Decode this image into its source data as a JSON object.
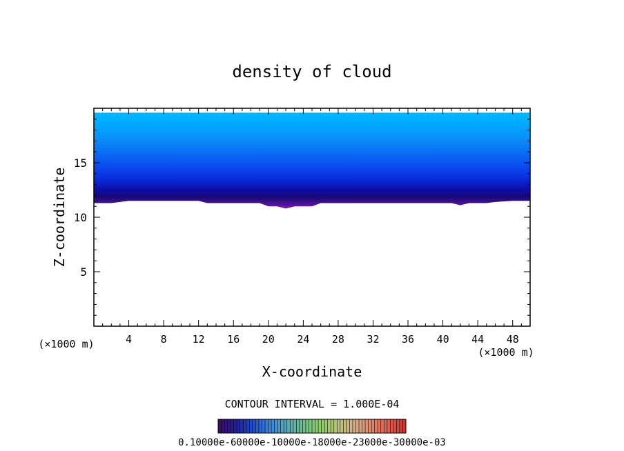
{
  "chart_data": {
    "type": "heatmap",
    "title": "density of cloud",
    "xlabel": "X-coordinate",
    "ylabel": "Z-coordinate",
    "x_unit": "(×1000 m)",
    "y_unit": "(×1000 m)",
    "xlim": [
      0,
      50
    ],
    "ylim": [
      0,
      20
    ],
    "x_ticks": [
      "4",
      "8",
      "12",
      "16",
      "20",
      "24",
      "28",
      "32",
      "36",
      "40",
      "44",
      "48"
    ],
    "y_ticks": [
      "5",
      "10",
      "15"
    ],
    "contour_interval_label": "CONTOUR INTERVAL = 1.000E-04",
    "colorbar_label": "0.10000e-60000e-10000e-18000e-23000e-30000e-03",
    "cloud_top_km": 19.6,
    "cloud_base_profile": {
      "x": [
        0,
        2,
        4,
        6,
        8,
        10,
        12,
        13,
        16,
        17,
        19,
        20,
        21,
        22,
        23,
        24,
        25,
        26,
        28,
        30,
        32,
        34,
        36,
        38,
        40,
        41,
        42,
        43,
        45,
        46,
        48,
        50
      ],
      "z": [
        11.3,
        11.3,
        11.5,
        11.5,
        11.5,
        11.5,
        11.5,
        11.3,
        11.3,
        11.3,
        11.3,
        11.0,
        11.0,
        10.8,
        11.0,
        11.0,
        11.0,
        11.3,
        11.3,
        11.3,
        11.3,
        11.3,
        11.3,
        11.3,
        11.3,
        11.3,
        11.1,
        11.3,
        11.3,
        11.4,
        11.5,
        11.5
      ]
    },
    "color_levels": [
      "#7a16b8",
      "#1b0878",
      "#0c0ea8",
      "#0a2ad8",
      "#0a4cf0",
      "#0a6df4",
      "#0a8cf8",
      "#00aaff",
      "#00b8ff"
    ],
    "colorbar_colors": [
      "#3a0f6a",
      "#22209a",
      "#1e4fd0",
      "#3e86d6",
      "#5aa8b6",
      "#6fbf8a",
      "#8fcf6a",
      "#b8c47a",
      "#d6b08a",
      "#e08a70",
      "#e06050",
      "#c83b34"
    ]
  }
}
